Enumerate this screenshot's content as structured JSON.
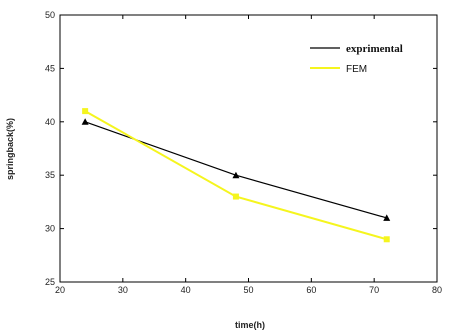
{
  "chart_data": {
    "type": "line",
    "title": "",
    "xlabel": "time(h)",
    "ylabel": "springback(%)",
    "xlim": [
      20,
      80
    ],
    "ylim": [
      25,
      50
    ],
    "xticks": [
      20,
      30,
      40,
      50,
      60,
      70,
      80
    ],
    "yticks": [
      25,
      30,
      35,
      40,
      45,
      50
    ],
    "grid": false,
    "legend_position": "top-right",
    "series": [
      {
        "name": "exprimental",
        "color": "#000000",
        "marker": "triangle",
        "x": [
          24,
          48,
          72
        ],
        "y": [
          40,
          35,
          31
        ]
      },
      {
        "name": "FEM",
        "color": "#f5f51e",
        "marker": "square",
        "x": [
          24,
          48,
          72
        ],
        "y": [
          41,
          33,
          29
        ]
      }
    ]
  }
}
